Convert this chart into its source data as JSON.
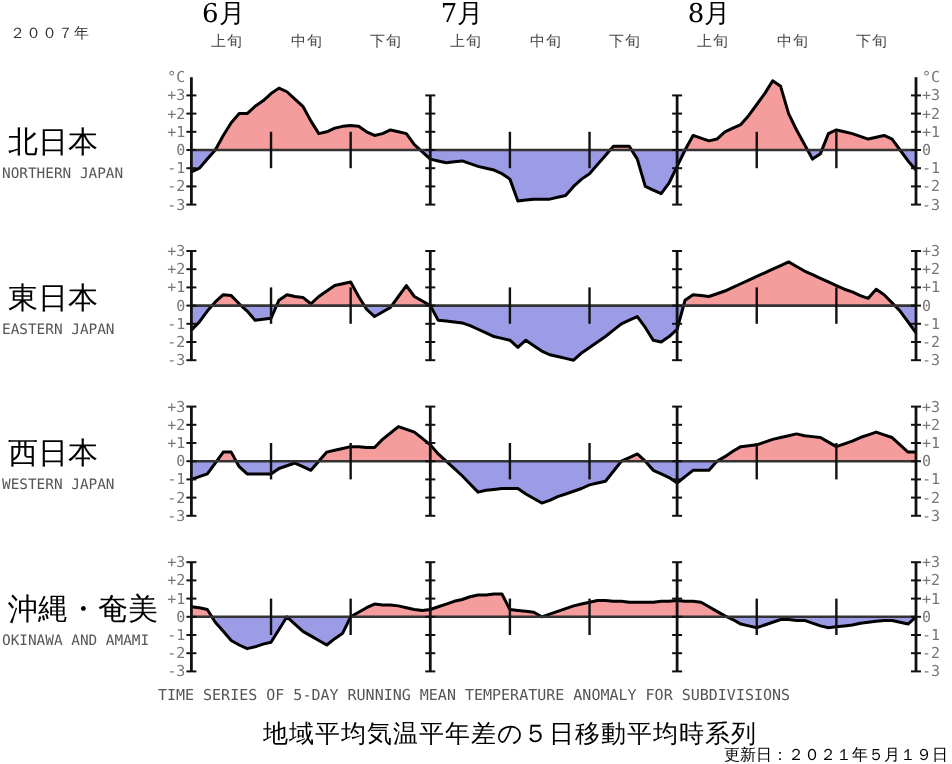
{
  "chart_data": [
    {
      "type": "area",
      "title": "北日本",
      "subtitle": "NORTHERN JAPAN",
      "ylabel": "°C",
      "y2label": "°C",
      "annotations": [
        "２００７年",
        "6月",
        "7月",
        "8月",
        "上旬",
        "中旬",
        "下旬",
        "上旬",
        "中旬",
        "下旬",
        "上旬",
        "中旬",
        "下旬"
      ],
      "categories": [
        null,
        null,
        null,
        null,
        null,
        null,
        null,
        null,
        null,
        null,
        null,
        null,
        null,
        null,
        null,
        null,
        null,
        null,
        null,
        null,
        null,
        null,
        null,
        null,
        null,
        null,
        null,
        null,
        null,
        null,
        null,
        null,
        null,
        null,
        null,
        null,
        null,
        null,
        null,
        null,
        null,
        null,
        null,
        null,
        null,
        null,
        null,
        null,
        null,
        null,
        null,
        null,
        null,
        null,
        null,
        null,
        null,
        null,
        null,
        null,
        null,
        null,
        null,
        null,
        null,
        null,
        null,
        null,
        null,
        null,
        null,
        null,
        null,
        null,
        null,
        null,
        null,
        null,
        null,
        null,
        null,
        null,
        null,
        null,
        null,
        null,
        null,
        null,
        null,
        null,
        null,
        null
      ],
      "series": [
        {
          "color": "#000000",
          "values": [
            -1.2,
            -1.0,
            -0.5,
            0,
            0.8,
            1.5,
            2.0,
            2.0,
            2.4,
            2.7,
            3.1,
            3.4,
            3.2,
            2.8,
            2.4,
            1.6,
            0.9,
            1.0,
            1.2,
            1.3,
            1.35,
            1.3,
            1.0,
            0.8,
            0.9,
            1.1,
            1.0,
            0.9,
            0.3,
            -0.1,
            -0.5,
            -0.6,
            -0.7,
            -0.65,
            -0.6,
            -0.75,
            -0.9,
            -1.0,
            -1.1,
            -1.3,
            -1.6,
            -2.8,
            -2.75,
            -2.7,
            -2.7,
            -2.7,
            -2.6,
            -2.5,
            -2.0,
            -1.6,
            -1.3,
            -0.8,
            -0.3,
            0.2,
            0.2,
            0.2,
            -0.5,
            -2.0,
            -2.2,
            -2.4,
            -1.8,
            -0.9,
            0.0,
            0.8,
            0.65,
            0.5,
            0.6,
            1.0,
            1.2,
            1.4,
            1.9,
            2.5,
            3.1,
            3.8,
            3.5,
            2.0,
            1.1,
            0.3,
            -0.5,
            -0.2,
            0.9,
            1.1,
            1.0,
            0.9,
            0.75,
            0.6,
            0.7,
            0.8,
            0.6,
            0.0,
            -0.6,
            -1.1
          ]
        }
      ],
      "colors": [
        "#f59c9c",
        "#9c9ce6"
      ],
      "ylim": [
        -3,
        4
      ],
      "yticks": [
        {
          "value": 3,
          "label": "+3"
        },
        {
          "value": 2,
          "label": "+2"
        },
        {
          "value": 1,
          "label": "+1"
        },
        0,
        -1,
        -2,
        -3
      ],
      "y2lim": [
        -3,
        4
      ],
      "y2ticks": [
        {
          "value": 3,
          "label": "+3"
        },
        {
          "value": 2,
          "label": "+2"
        },
        {
          "value": 1,
          "label": "+1"
        },
        0,
        -1,
        -2,
        -3
      ],
      "ref_lines": [
        {
          "axis": "y",
          "value": 0,
          "color": "#333333"
        }
      ],
      "tick_labels": "y"
    },
    {
      "type": "area",
      "title": "東日本",
      "subtitle": "EASTERN JAPAN",
      "categories": [
        null,
        null,
        null,
        null,
        null,
        null,
        null,
        null,
        null,
        null,
        null,
        null,
        null,
        null,
        null,
        null,
        null,
        null,
        null,
        null,
        null,
        null,
        null,
        null,
        null,
        null,
        null,
        null,
        null,
        null,
        null,
        null,
        null,
        null,
        null,
        null,
        null,
        null,
        null,
        null,
        null,
        null,
        null,
        null,
        null,
        null,
        null,
        null,
        null,
        null,
        null,
        null,
        null,
        null,
        null,
        null,
        null,
        null,
        null,
        null,
        null,
        null,
        null,
        null,
        null,
        null,
        null,
        null,
        null,
        null,
        null,
        null,
        null,
        null,
        null,
        null,
        null,
        null,
        null,
        null,
        null,
        null,
        null,
        null,
        null,
        null,
        null,
        null,
        null,
        null,
        null,
        null
      ],
      "series": [
        {
          "color": "#000000",
          "values": [
            -1.35,
            -0.9,
            -0.3,
            0.2,
            0.6,
            0.55,
            0.1,
            -0.3,
            -0.8,
            -0.75,
            -0.7,
            0.3,
            0.6,
            0.5,
            0.45,
            0.1,
            0.5,
            0.8,
            1.1,
            1.2,
            1.3,
            0.5,
            -0.2,
            -0.6,
            -0.35,
            -0.1,
            0.5,
            1.1,
            0.5,
            0.25,
            0.0,
            -0.8,
            -0.85,
            -0.9,
            -0.95,
            -1.1,
            -1.3,
            -1.5,
            -1.7,
            -1.8,
            -1.9,
            -2.3,
            -1.9,
            -2.2,
            -2.5,
            -2.7,
            -2.8,
            -2.9,
            -3.0,
            -2.6,
            -2.3,
            -2.0,
            -1.7,
            -1.35,
            -1.0,
            -0.8,
            -0.6,
            -1.2,
            -1.9,
            -2.0,
            -1.7,
            -1.3,
            0.3,
            0.6,
            0.55,
            0.5,
            0.65,
            0.8,
            1.0,
            1.2,
            1.4,
            1.6,
            1.8,
            2.0,
            2.2,
            2.4,
            2.15,
            1.9,
            1.7,
            1.5,
            1.3,
            1.1,
            0.9,
            0.75,
            0.55,
            0.4,
            0.9,
            0.6,
            0.15,
            -0.3,
            -0.9,
            -1.5
          ]
        }
      ],
      "colors": [
        "#f59c9c",
        "#9c9ce6"
      ],
      "ylim": [
        -3,
        3
      ],
      "yticks": [
        {
          "value": 3,
          "label": "+3"
        },
        {
          "value": 2,
          "label": "+2"
        },
        {
          "value": 1,
          "label": "+1"
        },
        0,
        -1,
        -2,
        -3
      ],
      "y2lim": [
        -3,
        3
      ],
      "y2ticks": [
        {
          "value": 3,
          "label": "+3"
        },
        {
          "value": 2,
          "label": "+2"
        },
        {
          "value": 1,
          "label": "+1"
        },
        0,
        -1,
        -2,
        -3
      ],
      "ref_lines": [
        {
          "axis": "y",
          "value": 0,
          "color": "#333333"
        }
      ],
      "tick_labels": "y"
    },
    {
      "type": "area",
      "title": "西日本",
      "subtitle": "WESTERN JAPAN",
      "categories": [
        null,
        null,
        null,
        null,
        null,
        null,
        null,
        null,
        null,
        null,
        null,
        null,
        null,
        null,
        null,
        null,
        null,
        null,
        null,
        null,
        null,
        null,
        null,
        null,
        null,
        null,
        null,
        null,
        null,
        null,
        null,
        null,
        null,
        null,
        null,
        null,
        null,
        null,
        null,
        null,
        null,
        null,
        null,
        null,
        null,
        null,
        null,
        null,
        null,
        null,
        null,
        null,
        null,
        null,
        null,
        null,
        null,
        null,
        null,
        null,
        null,
        null,
        null,
        null,
        null,
        null,
        null,
        null,
        null,
        null,
        null,
        null,
        null,
        null,
        null,
        null,
        null,
        null,
        null,
        null,
        null,
        null,
        null,
        null,
        null,
        null,
        null,
        null,
        null,
        null,
        null,
        null
      ],
      "series": [
        {
          "color": "#000000",
          "values": [
            -1.0,
            -0.85,
            -0.7,
            -0.1,
            0.5,
            0.5,
            -0.3,
            -0.7,
            -0.7,
            -0.7,
            -0.7,
            -0.4,
            -0.25,
            -0.1,
            -0.3,
            -0.5,
            0.0,
            0.5,
            0.6,
            0.7,
            0.8,
            0.8,
            0.75,
            0.75,
            1.2,
            1.55,
            1.9,
            1.75,
            1.6,
            1.25,
            0.9,
            0.4,
            0.0,
            -0.4,
            -0.8,
            -1.25,
            -1.7,
            -1.6,
            -1.55,
            -1.5,
            -1.5,
            -1.5,
            -1.8,
            -2.05,
            -2.3,
            -2.15,
            -1.95,
            -1.8,
            -1.65,
            -1.5,
            -1.3,
            -1.2,
            -1.1,
            -0.55,
            0.0,
            0.2,
            0.4,
            0.0,
            -0.5,
            -0.7,
            -0.9,
            -1.2,
            -0.85,
            -0.5,
            -0.5,
            -0.5,
            0.0,
            0.25,
            0.55,
            0.8,
            0.85,
            0.9,
            1.05,
            1.2,
            1.3,
            1.4,
            1.5,
            1.4,
            1.35,
            1.3,
            1.05,
            0.8,
            0.95,
            1.1,
            1.3,
            1.45,
            1.6,
            1.45,
            1.3,
            0.9,
            0.5,
            0.5
          ]
        }
      ],
      "colors": [
        "#f59c9c",
        "#9c9ce6"
      ],
      "ylim": [
        -3,
        3
      ],
      "yticks": [
        {
          "value": 3,
          "label": "+3"
        },
        {
          "value": 2,
          "label": "+2"
        },
        {
          "value": 1,
          "label": "+1"
        },
        0,
        -1,
        -2,
        -3
      ],
      "y2lim": [
        -3,
        3
      ],
      "y2ticks": [
        {
          "value": 3,
          "label": "+3"
        },
        {
          "value": 2,
          "label": "+2"
        },
        {
          "value": 1,
          "label": "+1"
        },
        0,
        -1,
        -2,
        -3
      ],
      "ref_lines": [
        {
          "axis": "y",
          "value": 0,
          "color": "#333333"
        }
      ],
      "tick_labels": "y"
    },
    {
      "type": "area",
      "title": "沖縄・奄美",
      "subtitle": "OKINAWA AND AMAMI",
      "annotations": [
        "TIME SERIES OF 5-DAY RUNNING MEAN TEMPERATURE ANOMALY FOR SUBDIVISIONS",
        "地域平均気温平年差の５日移動平均時系列",
        "更新日：２０２１年５月１９日"
      ],
      "categories": [
        null,
        null,
        null,
        null,
        null,
        null,
        null,
        null,
        null,
        null,
        null,
        null,
        null,
        null,
        null,
        null,
        null,
        null,
        null,
        null,
        null,
        null,
        null,
        null,
        null,
        null,
        null,
        null,
        null,
        null,
        null,
        null,
        null,
        null,
        null,
        null,
        null,
        null,
        null,
        null,
        null,
        null,
        null,
        null,
        null,
        null,
        null,
        null,
        null,
        null,
        null,
        null,
        null,
        null,
        null,
        null,
        null,
        null,
        null,
        null,
        null,
        null,
        null,
        null,
        null,
        null,
        null,
        null,
        null,
        null,
        null,
        null,
        null,
        null,
        null,
        null,
        null,
        null,
        null,
        null,
        null,
        null,
        null,
        null,
        null,
        null,
        null,
        null,
        null,
        null,
        null,
        null
      ],
      "series": [
        {
          "color": "#000000",
          "values": [
            0.55,
            0.5,
            0.4,
            -0.3,
            -0.8,
            -1.3,
            -1.55,
            -1.75,
            -1.65,
            -1.5,
            -1.4,
            -0.7,
            0.0,
            -0.4,
            -0.8,
            -1.05,
            -1.3,
            -1.55,
            -1.2,
            -0.9,
            0.0,
            0.25,
            0.5,
            0.7,
            0.65,
            0.65,
            0.6,
            0.5,
            0.4,
            0.35,
            0.4,
            0.55,
            0.7,
            0.85,
            0.95,
            1.1,
            1.2,
            1.2,
            1.25,
            1.25,
            0.4,
            0.35,
            0.3,
            0.25,
            0.0,
            0.15,
            0.3,
            0.45,
            0.6,
            0.7,
            0.8,
            0.9,
            0.9,
            0.85,
            0.85,
            0.8,
            0.8,
            0.8,
            0.8,
            0.85,
            0.85,
            0.9,
            0.85,
            0.85,
            0.8,
            0.55,
            0.3,
            0.05,
            -0.15,
            -0.4,
            -0.5,
            -0.6,
            -0.45,
            -0.3,
            -0.15,
            -0.15,
            -0.2,
            -0.2,
            -0.35,
            -0.5,
            -0.6,
            -0.55,
            -0.5,
            -0.45,
            -0.35,
            -0.3,
            -0.25,
            -0.2,
            -0.2,
            -0.3,
            -0.4,
            0.0
          ]
        }
      ],
      "colors": [
        "#f59c9c",
        "#9c9ce6"
      ],
      "ylim": [
        -3,
        3
      ],
      "yticks": [
        {
          "value": 3,
          "label": "+3"
        },
        {
          "value": 2,
          "label": "+2"
        },
        {
          "value": 1,
          "label": "+1"
        },
        0,
        -1,
        -2,
        -3
      ],
      "y2lim": [
        -3,
        3
      ],
      "y2ticks": [
        {
          "value": 3,
          "label": "+3"
        },
        {
          "value": 2,
          "label": "+2"
        },
        {
          "value": 1,
          "label": "+1"
        },
        0,
        -1,
        -2,
        -3
      ],
      "ref_lines": [
        {
          "axis": "y",
          "value": 0,
          "color": "#333333"
        }
      ],
      "tick_labels": "y"
    }
  ]
}
